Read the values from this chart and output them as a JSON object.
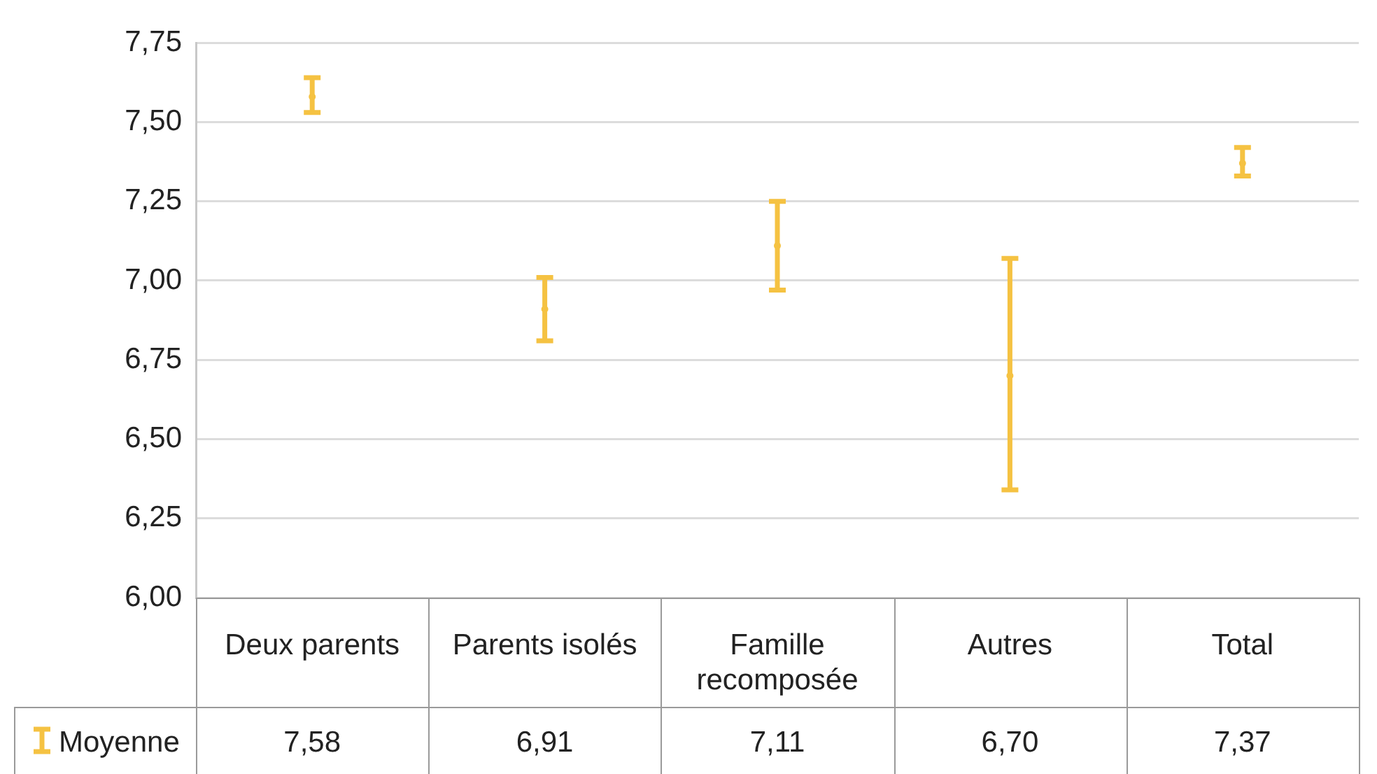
{
  "chart_data": {
    "type": "scatter",
    "categories": [
      "Deux parents",
      "Parents isolés",
      "Famille recomposée",
      "Autres",
      "Total"
    ],
    "series": [
      {
        "name": "Moyenne",
        "color": "#f5c242",
        "values": [
          7.58,
          6.91,
          7.11,
          6.7,
          7.37
        ],
        "errors": [
          [
            7.53,
            7.64
          ],
          [
            6.81,
            7.01
          ],
          [
            6.97,
            7.25
          ],
          [
            6.34,
            7.07
          ],
          [
            7.33,
            7.42
          ]
        ],
        "value_labels": [
          "7,58",
          "6,91",
          "7,11",
          "6,70",
          "7,37"
        ]
      }
    ],
    "marker": "circle",
    "legend": "bottom",
    "grid": "y",
    "ylim": [
      6,
      7.75
    ],
    "yticks": [
      {
        "value": 6,
        "label": "6,00"
      },
      {
        "value": 6.25,
        "label": "6,25"
      },
      {
        "value": 6.5,
        "label": "6,50"
      },
      {
        "value": 6.75,
        "label": "6,75"
      },
      {
        "value": 7,
        "label": "7,00"
      },
      {
        "value": 7.25,
        "label": "7,25"
      },
      {
        "value": 7.5,
        "label": "7,50"
      },
      {
        "value": 7.75,
        "label": "7,75"
      }
    ]
  }
}
